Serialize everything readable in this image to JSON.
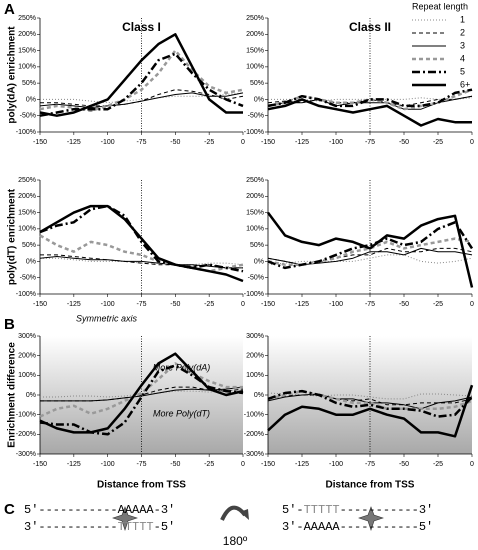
{
  "panels": [
    "A",
    "B",
    "C"
  ],
  "legend": {
    "title": "Repeat length",
    "entries": [
      {
        "name": "1",
        "color": "#888888",
        "dash": "1,2",
        "width": 1
      },
      {
        "name": "2",
        "color": "#000000",
        "dash": "4,3",
        "width": 1
      },
      {
        "name": "3",
        "color": "#000000",
        "dash": "",
        "width": 1
      },
      {
        "name": "4",
        "color": "#999999",
        "dash": "4,3",
        "width": 2.5
      },
      {
        "name": "5",
        "color": "#000000",
        "dash": "8,3,2,3",
        "width": 2.5
      },
      {
        "name": "6+",
        "color": "#000000",
        "dash": "",
        "width": 2.5
      }
    ]
  },
  "chart_data": [
    {
      "type": "line",
      "title": "Class I",
      "ylabel": "poly(dA) enrichment",
      "vline": -75,
      "x": [
        -150,
        -137.5,
        -125,
        -112.5,
        -100,
        -87.5,
        -75,
        -62.5,
        -50,
        -37.5,
        -25,
        -12.5,
        0
      ],
      "xlim": [
        -150,
        0
      ],
      "xticks": [
        -150,
        -125,
        -100,
        -75,
        -50,
        -25,
        0
      ],
      "ylim": [
        -100,
        250
      ],
      "yticks": [
        {
          "value": -100,
          "label": "-100%"
        },
        {
          "value": -50,
          "label": "-50%"
        },
        {
          "value": 0,
          "label": "0%"
        },
        {
          "value": 50,
          "label": "50%"
        },
        {
          "value": 100,
          "label": "100%"
        },
        {
          "value": 150,
          "label": "150%"
        },
        {
          "value": 200,
          "label": "200%"
        },
        {
          "value": 250,
          "label": "250%"
        }
      ],
      "series": [
        {
          "values": [
            0,
            0,
            0,
            -5,
            -10,
            -5,
            0,
            5,
            10,
            10,
            10,
            15,
            20
          ]
        },
        {
          "values": [
            -10,
            -10,
            -15,
            -20,
            -20,
            -15,
            -5,
            15,
            30,
            25,
            15,
            0,
            10
          ]
        },
        {
          "values": [
            -20,
            -15,
            -20,
            -25,
            -20,
            -15,
            -5,
            5,
            15,
            20,
            10,
            10,
            20
          ]
        },
        {
          "values": [
            -30,
            -20,
            -25,
            -35,
            -20,
            0,
            30,
            80,
            150,
            90,
            40,
            20,
            30
          ]
        },
        {
          "values": [
            -50,
            -40,
            -30,
            -30,
            -30,
            0,
            50,
            120,
            140,
            80,
            30,
            0,
            -20
          ]
        },
        {
          "values": [
            -40,
            -50,
            -40,
            -20,
            0,
            60,
            120,
            170,
            200,
            100,
            0,
            -40,
            -40
          ]
        }
      ]
    },
    {
      "type": "line",
      "title": "Class II",
      "vline": -75,
      "x": [
        -150,
        -137.5,
        -125,
        -112.5,
        -100,
        -87.5,
        -75,
        -62.5,
        -50,
        -37.5,
        -25,
        -12.5,
        0
      ],
      "xlim": [
        -150,
        0
      ],
      "xticks": [
        -150,
        -125,
        -100,
        -75,
        -50,
        -25,
        0
      ],
      "ylim": [
        -100,
        250
      ],
      "yticks": [
        {
          "value": -100,
          "label": "-100%"
        },
        {
          "value": -50,
          "label": "-50%"
        },
        {
          "value": 0,
          "label": "0%"
        },
        {
          "value": 50,
          "label": "50%"
        },
        {
          "value": 100,
          "label": "100%"
        },
        {
          "value": 150,
          "label": "150%"
        },
        {
          "value": 200,
          "label": "200%"
        },
        {
          "value": 250,
          "label": "250%"
        }
      ],
      "series": [
        {
          "values": [
            0,
            0,
            0,
            -5,
            0,
            0,
            0,
            0,
            0,
            5,
            0,
            0,
            5
          ]
        },
        {
          "values": [
            -10,
            -5,
            -10,
            0,
            -10,
            -10,
            0,
            -10,
            -20,
            -10,
            0,
            0,
            10
          ]
        },
        {
          "values": [
            -20,
            -10,
            -10,
            0,
            -20,
            -10,
            -10,
            -10,
            -30,
            -30,
            -10,
            0,
            10
          ]
        },
        {
          "values": [
            -20,
            -10,
            10,
            0,
            -10,
            -10,
            0,
            -10,
            -30,
            -20,
            -10,
            10,
            30
          ]
        },
        {
          "values": [
            -20,
            -10,
            10,
            0,
            -20,
            -20,
            0,
            0,
            -20,
            -20,
            -10,
            20,
            30
          ]
        },
        {
          "values": [
            -30,
            -20,
            0,
            -20,
            -30,
            -40,
            -30,
            -20,
            -50,
            -80,
            -60,
            -70,
            -70
          ]
        }
      ]
    },
    {
      "type": "line",
      "ylabel": "poly(dT) enrichment",
      "vline": -75,
      "x": [
        -150,
        -137.5,
        -125,
        -112.5,
        -100,
        -87.5,
        -75,
        -62.5,
        -50,
        -37.5,
        -25,
        -12.5,
        0
      ],
      "xlim": [
        -150,
        0
      ],
      "xticks": [
        -150,
        -125,
        -100,
        -75,
        -50,
        -25,
        0
      ],
      "ylim": [
        -100,
        250
      ],
      "yticks": [
        {
          "value": -100,
          "label": "-100%"
        },
        {
          "value": -50,
          "label": "-50%"
        },
        {
          "value": 0,
          "label": "0%"
        },
        {
          "value": 50,
          "label": "50%"
        },
        {
          "value": 100,
          "label": "100%"
        },
        {
          "value": 150,
          "label": "150%"
        },
        {
          "value": 200,
          "label": "200%"
        },
        {
          "value": 250,
          "label": "250%"
        }
      ],
      "series": [
        {
          "values": [
            10,
            10,
            5,
            0,
            0,
            0,
            -5,
            -5,
            -10,
            -10,
            -5,
            -5,
            -10
          ]
        },
        {
          "values": [
            20,
            20,
            15,
            10,
            5,
            0,
            -5,
            -10,
            -10,
            -15,
            -10,
            -20,
            -20
          ]
        },
        {
          "values": [
            10,
            15,
            10,
            5,
            5,
            0,
            0,
            -5,
            -10,
            -10,
            -15,
            -20,
            -20
          ]
        },
        {
          "values": [
            80,
            50,
            30,
            60,
            50,
            30,
            20,
            0,
            -10,
            -20,
            -30,
            -20,
            -10
          ]
        },
        {
          "values": [
            90,
            110,
            120,
            160,
            170,
            140,
            60,
            0,
            -10,
            -20,
            -10,
            -20,
            -30
          ]
        },
        {
          "values": [
            90,
            120,
            150,
            170,
            170,
            130,
            70,
            10,
            -10,
            -20,
            -30,
            -40,
            -60
          ]
        }
      ]
    },
    {
      "type": "line",
      "vline": -75,
      "x": [
        -150,
        -137.5,
        -125,
        -112.5,
        -100,
        -87.5,
        -75,
        -62.5,
        -50,
        -37.5,
        -25,
        -12.5,
        0
      ],
      "xlim": [
        -150,
        0
      ],
      "xticks": [
        -150,
        -125,
        -100,
        -75,
        -50,
        -25,
        0
      ],
      "ylim": [
        -100,
        250
      ],
      "yticks": [
        {
          "value": -100,
          "label": "-100%"
        },
        {
          "value": -50,
          "label": "-50%"
        },
        {
          "value": 0,
          "label": "0%"
        },
        {
          "value": 50,
          "label": "50%"
        },
        {
          "value": 100,
          "label": "100%"
        },
        {
          "value": 150,
          "label": "150%"
        },
        {
          "value": 200,
          "label": "200%"
        },
        {
          "value": 250,
          "label": "250%"
        }
      ],
      "series": [
        {
          "values": [
            -10,
            -5,
            0,
            0,
            0,
            0,
            10,
            20,
            20,
            0,
            -5,
            0,
            10
          ]
        },
        {
          "values": [
            10,
            0,
            -10,
            0,
            10,
            20,
            20,
            40,
            30,
            30,
            40,
            40,
            30
          ]
        },
        {
          "values": [
            10,
            0,
            -10,
            -5,
            0,
            10,
            30,
            30,
            20,
            40,
            30,
            30,
            20
          ]
        },
        {
          "values": [
            0,
            -10,
            -10,
            0,
            10,
            30,
            40,
            60,
            40,
            50,
            60,
            70,
            60
          ]
        },
        {
          "values": [
            0,
            -20,
            -10,
            0,
            20,
            40,
            50,
            70,
            50,
            60,
            100,
            120,
            40
          ]
        },
        {
          "values": [
            150,
            80,
            60,
            50,
            70,
            60,
            40,
            80,
            70,
            110,
            130,
            140,
            -80
          ]
        }
      ]
    },
    {
      "type": "line",
      "ylabel": "Enrichment difference",
      "xlabel": "Distance from TSS",
      "vline": -75,
      "shaded": true,
      "annotations": [
        "Symmetric axis",
        "More Poly(dA)",
        "More Poly(dT)"
      ],
      "x": [
        -150,
        -137.5,
        -125,
        -112.5,
        -100,
        -87.5,
        -75,
        -62.5,
        -50,
        -37.5,
        -25,
        -12.5,
        0
      ],
      "xlim": [
        -150,
        0
      ],
      "xticks": [
        -150,
        -125,
        -100,
        -75,
        -50,
        -25,
        0
      ],
      "ylim": [
        -300,
        300
      ],
      "yticks": [
        {
          "value": -300,
          "label": "-300%"
        },
        {
          "value": -200,
          "label": "-200%"
        },
        {
          "value": -100,
          "label": "-100%"
        },
        {
          "value": 0,
          "label": "0%"
        },
        {
          "value": 100,
          "label": "100%"
        },
        {
          "value": 200,
          "label": "200%"
        },
        {
          "value": 300,
          "label": "300%"
        }
      ],
      "series": [
        {
          "values": [
            -10,
            -10,
            -5,
            -5,
            -10,
            -5,
            5,
            10,
            20,
            20,
            15,
            20,
            30
          ]
        },
        {
          "values": [
            -30,
            -30,
            -30,
            -30,
            -25,
            -15,
            0,
            25,
            40,
            40,
            25,
            20,
            30
          ]
        },
        {
          "values": [
            -30,
            -30,
            -30,
            -30,
            -25,
            -15,
            -5,
            10,
            25,
            30,
            25,
            30,
            40
          ]
        },
        {
          "values": [
            -110,
            -70,
            -55,
            -95,
            -70,
            -30,
            10,
            80,
            160,
            110,
            70,
            40,
            40
          ]
        },
        {
          "values": [
            -140,
            -150,
            -150,
            -190,
            -200,
            -140,
            -10,
            120,
            150,
            100,
            40,
            20,
            10
          ]
        },
        {
          "values": [
            -130,
            -170,
            -190,
            -190,
            -170,
            -70,
            50,
            160,
            210,
            120,
            30,
            0,
            20
          ]
        }
      ]
    },
    {
      "type": "line",
      "xlabel": "Distance from TSS",
      "vline": -75,
      "shaded": true,
      "x": [
        -150,
        -137.5,
        -125,
        -112.5,
        -100,
        -87.5,
        -75,
        -62.5,
        -50,
        -37.5,
        -25,
        -12.5,
        0
      ],
      "xlim": [
        -150,
        0
      ],
      "xticks": [
        -150,
        -125,
        -100,
        -75,
        -50,
        -25,
        0
      ],
      "ylim": [
        -300,
        300
      ],
      "yticks": [
        {
          "value": -300,
          "label": "-300%"
        },
        {
          "value": -200,
          "label": "-200%"
        },
        {
          "value": -100,
          "label": "-100%"
        },
        {
          "value": 0,
          "label": "0%"
        },
        {
          "value": 100,
          "label": "100%"
        },
        {
          "value": 200,
          "label": "200%"
        },
        {
          "value": 300,
          "label": "300%"
        }
      ],
      "series": [
        {
          "values": [
            10,
            5,
            0,
            -5,
            0,
            0,
            -10,
            -20,
            -20,
            5,
            5,
            0,
            -5
          ]
        },
        {
          "values": [
            -20,
            -5,
            0,
            0,
            -20,
            -30,
            -20,
            -50,
            -50,
            -40,
            -40,
            -40,
            -20
          ]
        },
        {
          "values": [
            -30,
            -10,
            0,
            5,
            -20,
            -20,
            -40,
            -40,
            -50,
            -70,
            -40,
            -30,
            -10
          ]
        },
        {
          "values": [
            -20,
            0,
            20,
            0,
            -20,
            -40,
            -40,
            -70,
            -70,
            -70,
            -70,
            -60,
            -30
          ]
        },
        {
          "values": [
            -20,
            10,
            20,
            0,
            -40,
            -60,
            -50,
            -70,
            -70,
            -80,
            -110,
            -100,
            -10
          ]
        },
        {
          "values": [
            -180,
            -100,
            -60,
            -70,
            -100,
            -100,
            -70,
            -100,
            -120,
            -190,
            -190,
            -210,
            50
          ]
        }
      ]
    }
  ],
  "diagram": {
    "left": {
      "top": [
        {
          "text": "5'-----------",
          "color": "#000"
        },
        {
          "text": "AAAAA",
          "color": "#000"
        },
        {
          "text": "-3'",
          "color": "#000"
        }
      ],
      "bottom": [
        {
          "text": "3'-----------",
          "color": "#000"
        },
        {
          "text": "TTTTT",
          "color": "#888"
        },
        {
          "text": "-5'",
          "color": "#000"
        }
      ]
    },
    "right": {
      "top": [
        {
          "text": "5'-",
          "color": "#000"
        },
        {
          "text": "TTTTT",
          "color": "#888"
        },
        {
          "text": "-----------3'",
          "color": "#000"
        }
      ],
      "bottom": [
        {
          "text": "3'-",
          "color": "#000"
        },
        {
          "text": "AAAAA",
          "color": "#000"
        },
        {
          "text": "-----------5'",
          "color": "#000"
        }
      ]
    },
    "rotation": "180º"
  }
}
